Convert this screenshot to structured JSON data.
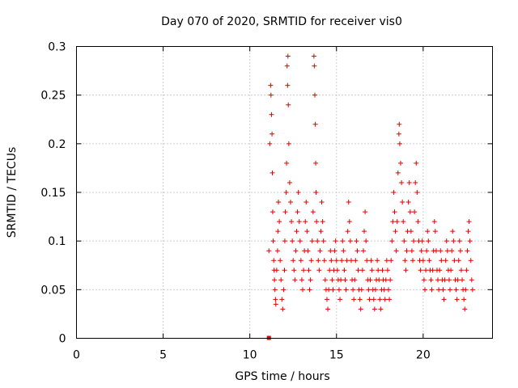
{
  "chart_data": {
    "type": "scatter",
    "title": "Day 070 of 2020, SRMTID for receiver vis0",
    "xlabel": "GPS time / hours",
    "ylabel": "SRMTID / TECUs",
    "xlim": [
      0,
      24
    ],
    "ylim": [
      0,
      0.3
    ],
    "x_ticks": [
      0,
      5,
      10,
      15,
      20
    ],
    "x_tick_labels": [
      "0",
      "5",
      "10",
      "15",
      "20"
    ],
    "y_ticks": [
      0,
      0.05,
      0.1,
      0.15,
      0.2,
      0.25,
      0.3
    ],
    "y_tick_labels": [
      "0",
      "0.05",
      "0.1",
      "0.15",
      "0.2",
      "0.25",
      "0.3"
    ],
    "grid": true,
    "marker": "plus",
    "color": "#e00000",
    "zero_marker": {
      "x": 11.1,
      "y": 0
    },
    "series": [
      {
        "name": "SRMTID",
        "points": [
          [
            11.1,
            0.09
          ],
          [
            11.15,
            0.2
          ],
          [
            11.2,
            0.26
          ],
          [
            11.22,
            0.25
          ],
          [
            11.25,
            0.23
          ],
          [
            11.28,
            0.21
          ],
          [
            11.3,
            0.17
          ],
          [
            11.32,
            0.13
          ],
          [
            11.35,
            0.1
          ],
          [
            11.38,
            0.08
          ],
          [
            11.4,
            0.07
          ],
          [
            11.42,
            0.06
          ],
          [
            11.45,
            0.05
          ],
          [
            11.48,
            0.04
          ],
          [
            11.5,
            0.035
          ],
          [
            11.55,
            0.07
          ],
          [
            11.6,
            0.09
          ],
          [
            11.62,
            0.11
          ],
          [
            11.65,
            0.14
          ],
          [
            11.7,
            0.12
          ],
          [
            11.75,
            0.08
          ],
          [
            11.8,
            0.06
          ],
          [
            11.85,
            0.04
          ],
          [
            11.9,
            0.03
          ],
          [
            11.95,
            0.05
          ],
          [
            12.0,
            0.07
          ],
          [
            12.02,
            0.1
          ],
          [
            12.05,
            0.13
          ],
          [
            12.1,
            0.15
          ],
          [
            12.12,
            0.18
          ],
          [
            12.15,
            0.28
          ],
          [
            12.18,
            0.26
          ],
          [
            12.2,
            0.29
          ],
          [
            12.22,
            0.24
          ],
          [
            12.25,
            0.2
          ],
          [
            12.3,
            0.16
          ],
          [
            12.35,
            0.14
          ],
          [
            12.4,
            0.12
          ],
          [
            12.45,
            0.1
          ],
          [
            12.5,
            0.08
          ],
          [
            12.55,
            0.07
          ],
          [
            12.6,
            0.06
          ],
          [
            12.65,
            0.09
          ],
          [
            12.7,
            0.11
          ],
          [
            12.75,
            0.13
          ],
          [
            12.8,
            0.15
          ],
          [
            12.85,
            0.12
          ],
          [
            12.9,
            0.1
          ],
          [
            12.95,
            0.08
          ],
          [
            13.0,
            0.06
          ],
          [
            13.05,
            0.05
          ],
          [
            13.1,
            0.07
          ],
          [
            13.15,
            0.09
          ],
          [
            13.2,
            0.12
          ],
          [
            13.25,
            0.14
          ],
          [
            13.3,
            0.11
          ],
          [
            13.35,
            0.09
          ],
          [
            13.4,
            0.07
          ],
          [
            13.45,
            0.05
          ],
          [
            13.5,
            0.06
          ],
          [
            13.55,
            0.08
          ],
          [
            13.6,
            0.1
          ],
          [
            13.65,
            0.13
          ],
          [
            13.7,
            0.29
          ],
          [
            13.72,
            0.28
          ],
          [
            13.75,
            0.25
          ],
          [
            13.78,
            0.22
          ],
          [
            13.8,
            0.18
          ],
          [
            13.82,
            0.15
          ],
          [
            13.85,
            0.12
          ],
          [
            13.9,
            0.1
          ],
          [
            13.95,
            0.08
          ],
          [
            14.0,
            0.07
          ],
          [
            14.05,
            0.09
          ],
          [
            14.1,
            0.11
          ],
          [
            14.15,
            0.14
          ],
          [
            14.2,
            0.12
          ],
          [
            14.25,
            0.1
          ],
          [
            14.3,
            0.08
          ],
          [
            14.35,
            0.06
          ],
          [
            14.4,
            0.05
          ],
          [
            14.45,
            0.04
          ],
          [
            14.5,
            0.03
          ],
          [
            14.55,
            0.05
          ],
          [
            14.6,
            0.07
          ],
          [
            14.65,
            0.09
          ],
          [
            14.7,
            0.08
          ],
          [
            14.75,
            0.06
          ],
          [
            14.8,
            0.05
          ],
          [
            14.85,
            0.07
          ],
          [
            14.9,
            0.09
          ],
          [
            14.95,
            0.1
          ],
          [
            15.0,
            0.08
          ],
          [
            15.05,
            0.07
          ],
          [
            15.1,
            0.06
          ],
          [
            15.15,
            0.05
          ],
          [
            15.2,
            0.04
          ],
          [
            15.25,
            0.06
          ],
          [
            15.3,
            0.08
          ],
          [
            15.35,
            0.1
          ],
          [
            15.4,
            0.09
          ],
          [
            15.45,
            0.07
          ],
          [
            15.5,
            0.06
          ],
          [
            15.55,
            0.05
          ],
          [
            15.6,
            0.08
          ],
          [
            15.65,
            0.11
          ],
          [
            15.7,
            0.14
          ],
          [
            15.75,
            0.12
          ],
          [
            15.8,
            0.1
          ],
          [
            15.85,
            0.08
          ],
          [
            15.9,
            0.06
          ],
          [
            15.95,
            0.05
          ],
          [
            16.0,
            0.04
          ],
          [
            16.05,
            0.06
          ],
          [
            16.1,
            0.08
          ],
          [
            16.15,
            0.1
          ],
          [
            16.2,
            0.09
          ],
          [
            16.25,
            0.07
          ],
          [
            16.3,
            0.05
          ],
          [
            16.35,
            0.04
          ],
          [
            16.4,
            0.03
          ],
          [
            16.45,
            0.05
          ],
          [
            16.5,
            0.07
          ],
          [
            16.55,
            0.09
          ],
          [
            16.6,
            0.11
          ],
          [
            16.65,
            0.13
          ],
          [
            16.7,
            0.1
          ],
          [
            16.75,
            0.08
          ],
          [
            16.8,
            0.06
          ],
          [
            16.85,
            0.05
          ],
          [
            16.9,
            0.04
          ],
          [
            16.95,
            0.06
          ],
          [
            17.0,
            0.08
          ],
          [
            17.05,
            0.07
          ],
          [
            17.1,
            0.05
          ],
          [
            17.15,
            0.04
          ],
          [
            17.2,
            0.03
          ],
          [
            17.25,
            0.05
          ],
          [
            17.3,
            0.06
          ],
          [
            17.35,
            0.08
          ],
          [
            17.4,
            0.07
          ],
          [
            17.45,
            0.06
          ],
          [
            17.5,
            0.04
          ],
          [
            17.55,
            0.03
          ],
          [
            17.6,
            0.05
          ],
          [
            17.65,
            0.07
          ],
          [
            17.7,
            0.06
          ],
          [
            17.75,
            0.05
          ],
          [
            17.8,
            0.04
          ],
          [
            17.85,
            0.06
          ],
          [
            17.9,
            0.08
          ],
          [
            17.95,
            0.07
          ],
          [
            18.0,
            0.05
          ],
          [
            18.05,
            0.04
          ],
          [
            18.1,
            0.06
          ],
          [
            18.15,
            0.08
          ],
          [
            18.2,
            0.1
          ],
          [
            18.25,
            0.12
          ],
          [
            18.3,
            0.15
          ],
          [
            18.35,
            0.13
          ],
          [
            18.4,
            0.11
          ],
          [
            18.45,
            0.09
          ],
          [
            18.5,
            0.12
          ],
          [
            18.55,
            0.17
          ],
          [
            18.6,
            0.21
          ],
          [
            18.62,
            0.22
          ],
          [
            18.65,
            0.2
          ],
          [
            18.7,
            0.18
          ],
          [
            18.75,
            0.16
          ],
          [
            18.8,
            0.14
          ],
          [
            18.85,
            0.12
          ],
          [
            18.9,
            0.1
          ],
          [
            18.95,
            0.08
          ],
          [
            19.0,
            0.07
          ],
          [
            19.05,
            0.09
          ],
          [
            19.1,
            0.11
          ],
          [
            19.15,
            0.14
          ],
          [
            19.2,
            0.16
          ],
          [
            19.25,
            0.13
          ],
          [
            19.3,
            0.11
          ],
          [
            19.35,
            0.09
          ],
          [
            19.4,
            0.08
          ],
          [
            19.45,
            0.1
          ],
          [
            19.5,
            0.13
          ],
          [
            19.55,
            0.16
          ],
          [
            19.6,
            0.18
          ],
          [
            19.65,
            0.15
          ],
          [
            19.7,
            0.12
          ],
          [
            19.75,
            0.1
          ],
          [
            19.8,
            0.08
          ],
          [
            19.85,
            0.07
          ],
          [
            19.9,
            0.09
          ],
          [
            19.95,
            0.1
          ],
          [
            20.0,
            0.08
          ],
          [
            20.05,
            0.06
          ],
          [
            20.1,
            0.05
          ],
          [
            20.15,
            0.07
          ],
          [
            20.2,
            0.09
          ],
          [
            20.25,
            0.11
          ],
          [
            20.3,
            0.1
          ],
          [
            20.35,
            0.08
          ],
          [
            20.4,
            0.07
          ],
          [
            20.45,
            0.06
          ],
          [
            20.5,
            0.05
          ],
          [
            20.55,
            0.07
          ],
          [
            20.6,
            0.09
          ],
          [
            20.65,
            0.12
          ],
          [
            20.7,
            0.11
          ],
          [
            20.75,
            0.09
          ],
          [
            20.8,
            0.07
          ],
          [
            20.85,
            0.06
          ],
          [
            20.9,
            0.05
          ],
          [
            20.95,
            0.07
          ],
          [
            21.0,
            0.09
          ],
          [
            21.05,
            0.08
          ],
          [
            21.1,
            0.06
          ],
          [
            21.15,
            0.05
          ],
          [
            21.2,
            0.04
          ],
          [
            21.25,
            0.06
          ],
          [
            21.3,
            0.08
          ],
          [
            21.35,
            0.1
          ],
          [
            21.4,
            0.09
          ],
          [
            21.45,
            0.07
          ],
          [
            21.5,
            0.06
          ],
          [
            21.55,
            0.05
          ],
          [
            21.6,
            0.07
          ],
          [
            21.65,
            0.09
          ],
          [
            21.7,
            0.11
          ],
          [
            21.75,
            0.1
          ],
          [
            21.8,
            0.08
          ],
          [
            21.85,
            0.06
          ],
          [
            21.9,
            0.05
          ],
          [
            21.95,
            0.04
          ],
          [
            22.0,
            0.06
          ],
          [
            22.05,
            0.08
          ],
          [
            22.1,
            0.1
          ],
          [
            22.15,
            0.09
          ],
          [
            22.2,
            0.07
          ],
          [
            22.25,
            0.06
          ],
          [
            22.3,
            0.05
          ],
          [
            22.35,
            0.04
          ],
          [
            22.4,
            0.03
          ],
          [
            22.45,
            0.05
          ],
          [
            22.5,
            0.07
          ],
          [
            22.55,
            0.09
          ],
          [
            22.6,
            0.11
          ],
          [
            22.65,
            0.12
          ],
          [
            22.7,
            0.1
          ],
          [
            22.75,
            0.08
          ],
          [
            22.8,
            0.06
          ],
          [
            22.85,
            0.05
          ]
        ]
      }
    ]
  }
}
